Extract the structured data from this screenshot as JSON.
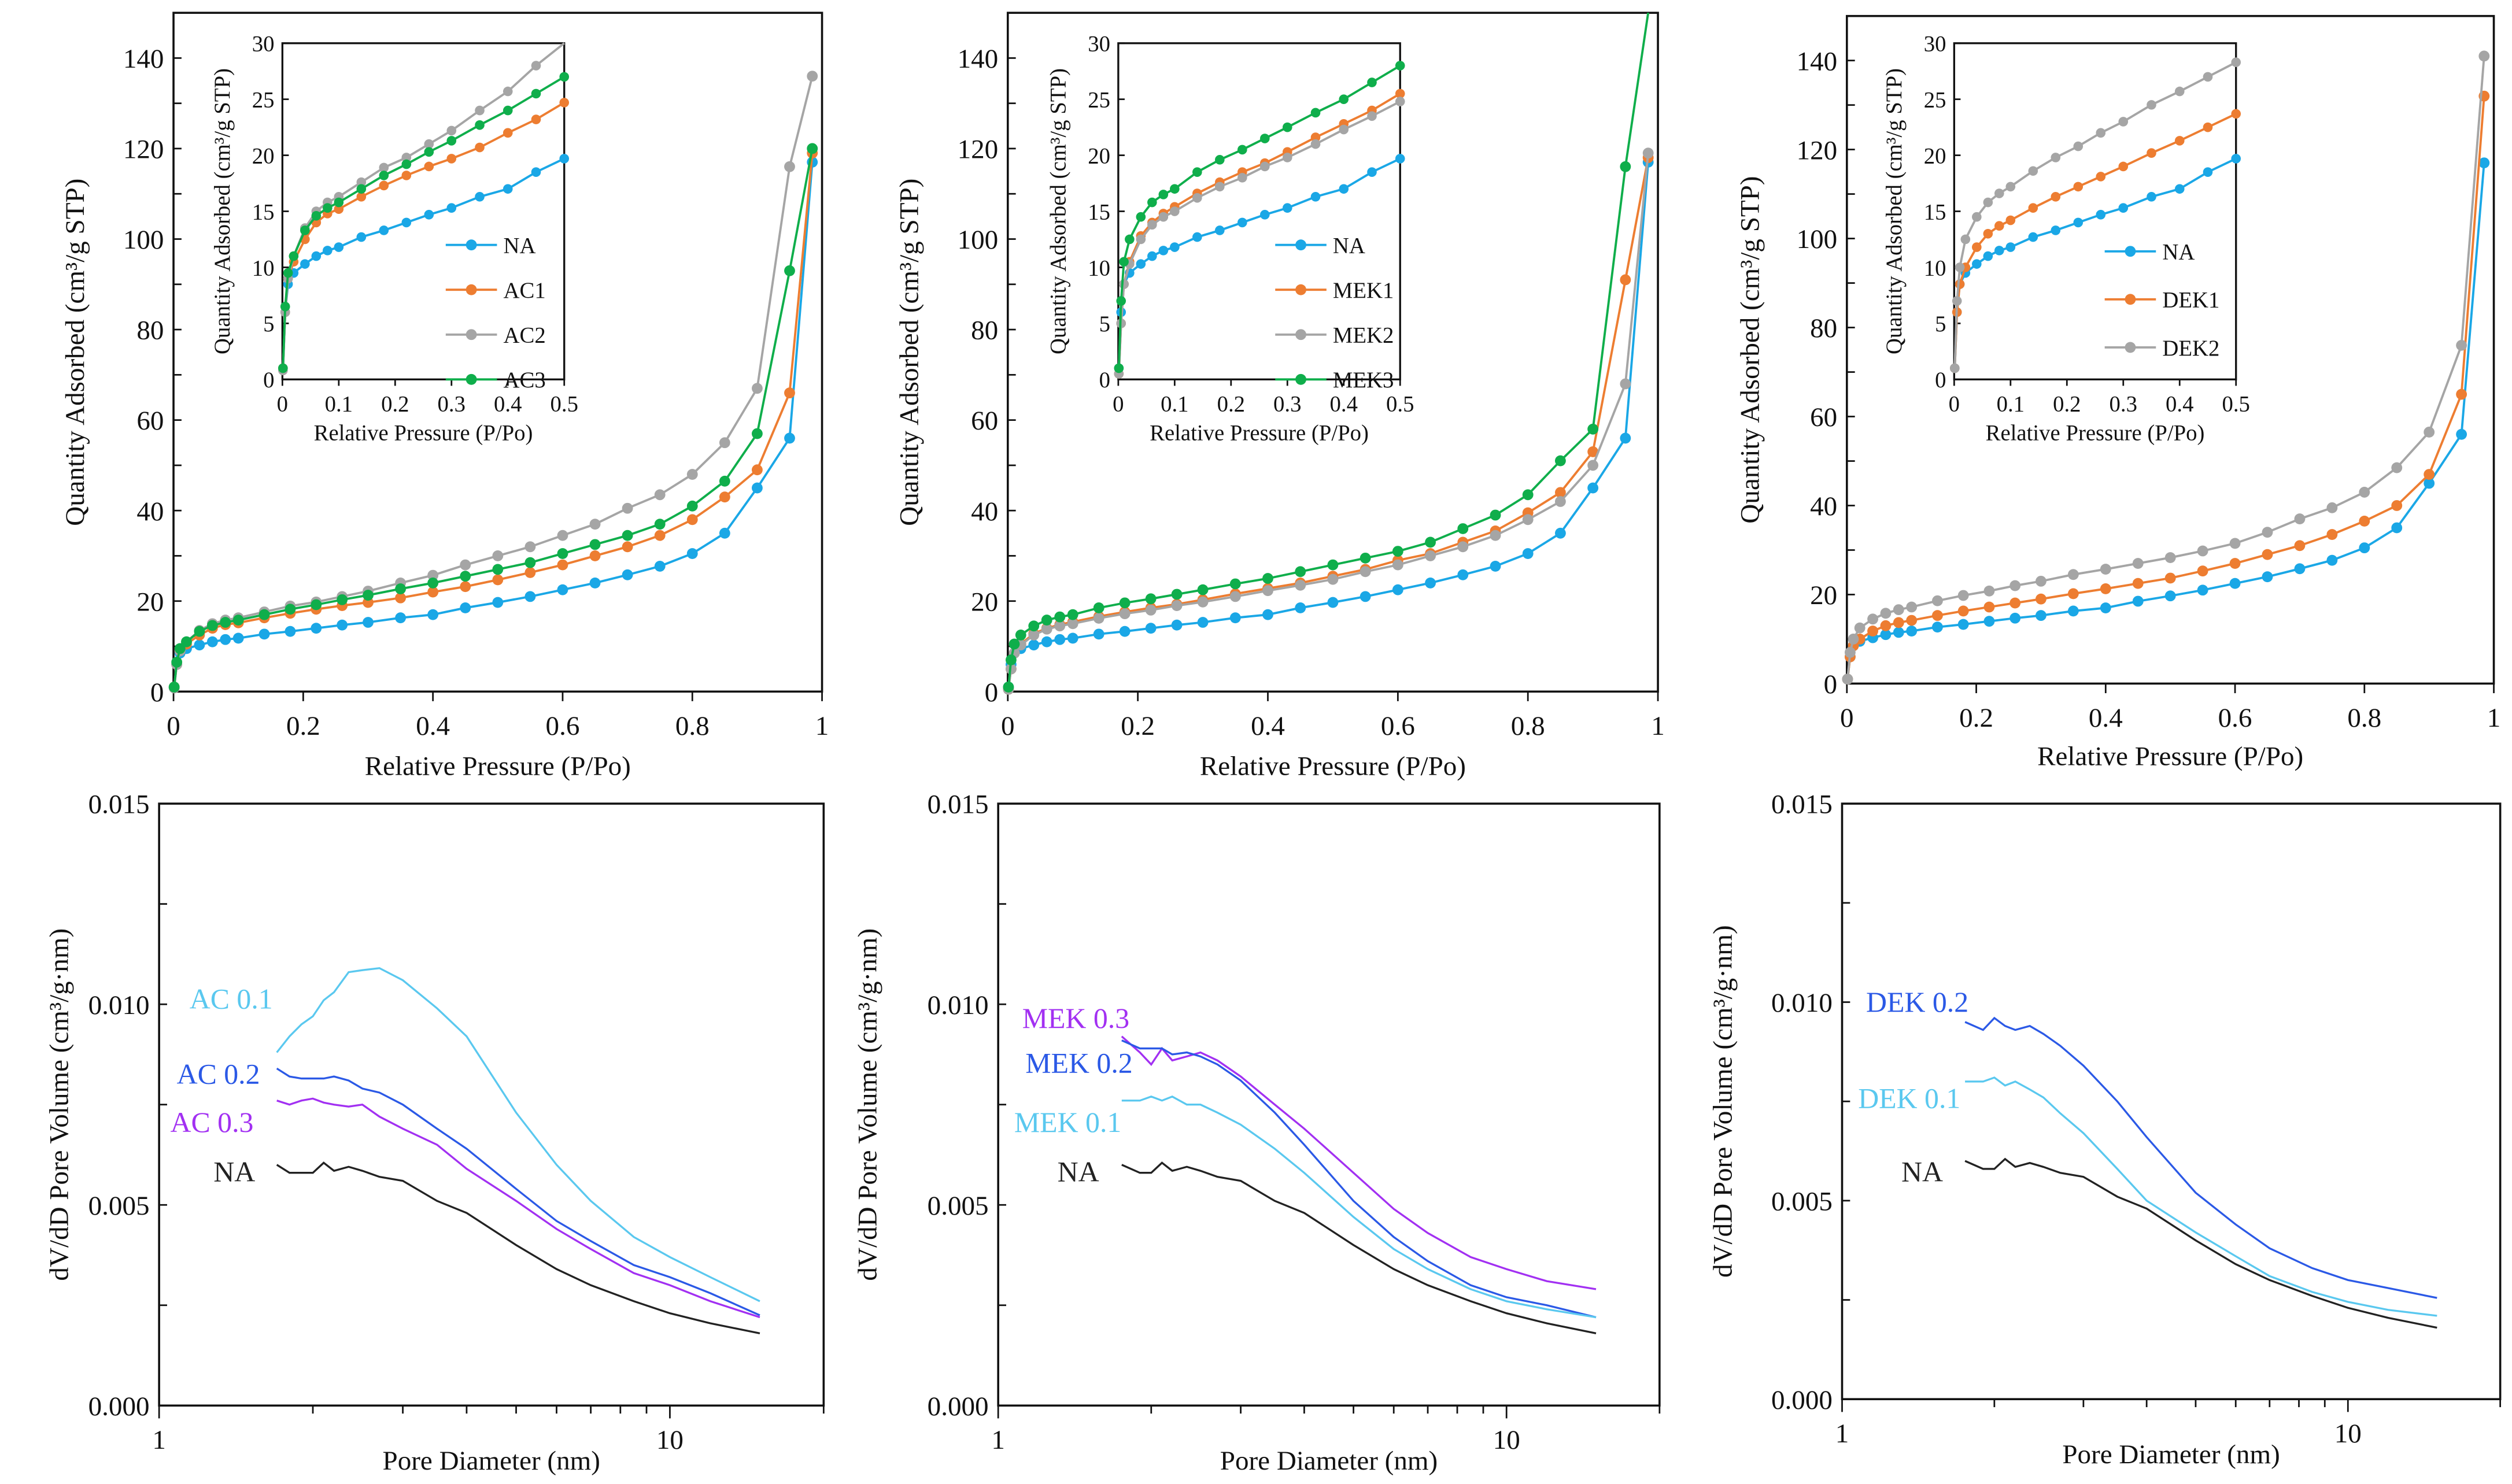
{
  "colors": {
    "NA": "#1aa7e6",
    "orange": "#ed7d31",
    "gray": "#a5a5a5",
    "green": "#0fae4b",
    "light_blue": "#5ac8ef",
    "blue": "#2b59e6",
    "purple": "#a230f2",
    "black": "#222222"
  },
  "chart_data": [
    {
      "id": "iso-ac",
      "type": "line",
      "xlabel": "Relative Pressure (P/Po)",
      "ylabel": "Quantity Adsorbed (cm³/g STP)",
      "xlim": [
        0,
        1
      ],
      "ylim": [
        0,
        150
      ],
      "xticks": [
        "0",
        "0.2",
        "0.4",
        "0.6",
        "0.8",
        "1"
      ],
      "yticks": [
        "0",
        "20",
        "40",
        "60",
        "80",
        "100",
        "120",
        "140"
      ],
      "x": [
        0.001,
        0.005,
        0.01,
        0.02,
        0.04,
        0.06,
        0.08,
        0.1,
        0.14,
        0.18,
        0.22,
        0.26,
        0.3,
        0.35,
        0.4,
        0.45,
        0.5,
        0.55,
        0.6,
        0.65,
        0.7,
        0.75,
        0.8,
        0.85,
        0.9,
        0.95,
        0.985
      ],
      "series": [
        {
          "name": "NA",
          "color": "#1aa7e6",
          "values": [
            1,
            6,
            8.5,
            9.5,
            10.3,
            11,
            11.5,
            11.8,
            12.7,
            13.3,
            14,
            14.7,
            15.3,
            16.3,
            17,
            18.5,
            19.7,
            21,
            22.5,
            24,
            25.8,
            27.7,
            30.5,
            35,
            45,
            56,
            117
          ]
        },
        {
          "name": "AC1",
          "color": "#ed7d31",
          "values": [
            1,
            6,
            9,
            10.5,
            12.5,
            14,
            14.8,
            15.2,
            16.3,
            17.3,
            18.2,
            19,
            19.7,
            20.7,
            22,
            23.2,
            24.7,
            26.3,
            28,
            30,
            32,
            34.5,
            38,
            43,
            49,
            66,
            119
          ]
        },
        {
          "name": "AC2",
          "color": "#a5a5a5",
          "values": [
            0.8,
            6,
            9,
            11,
            13.5,
            15,
            15.8,
            16.3,
            17.6,
            18.9,
            19.8,
            21,
            22.2,
            24,
            25.7,
            28,
            30,
            32,
            34.5,
            37,
            40.5,
            43.5,
            48,
            55,
            67,
            116,
            136
          ]
        },
        {
          "name": "AC3",
          "color": "#0fae4b",
          "values": [
            1,
            6.5,
            9.5,
            11,
            13.3,
            14.6,
            15.3,
            15.8,
            17,
            18.2,
            19.2,
            20.3,
            21.3,
            22.7,
            24,
            25.5,
            27,
            28.5,
            30.5,
            32.5,
            34.5,
            37,
            41,
            46.5,
            57,
            93,
            120
          ]
        }
      ],
      "inset": {
        "xlabel": "Relative Pressure (P/Po)",
        "ylabel": "Quantity Adsorbed (cm³/g STP)",
        "xlim": [
          0,
          0.5
        ],
        "ylim": [
          0,
          30
        ],
        "xticks": [
          "0",
          "0.1",
          "0.2",
          "0.3",
          "0.4",
          "0.5"
        ],
        "yticks": [
          "0",
          "5",
          "10",
          "15",
          "20",
          "25",
          "30"
        ],
        "legend": [
          "NA",
          "AC1",
          "AC2",
          "AC3"
        ]
      }
    },
    {
      "id": "iso-mek",
      "type": "line",
      "xlabel": "Relative Pressure (P/Po)",
      "ylabel": "Quantity Adsorbed (cm³/g STP)",
      "xlim": [
        0,
        1
      ],
      "ylim": [
        0,
        150
      ],
      "xticks": [
        "0",
        "0.2",
        "0.4",
        "0.6",
        "0.8",
        "1"
      ],
      "yticks": [
        "0",
        "20",
        "40",
        "60",
        "80",
        "100",
        "120",
        "140"
      ],
      "x": [
        0.001,
        0.005,
        0.01,
        0.02,
        0.04,
        0.06,
        0.08,
        0.1,
        0.14,
        0.18,
        0.22,
        0.26,
        0.3,
        0.35,
        0.4,
        0.45,
        0.5,
        0.55,
        0.6,
        0.65,
        0.7,
        0.75,
        0.8,
        0.85,
        0.9,
        0.95,
        0.985
      ],
      "series": [
        {
          "name": "NA",
          "color": "#1aa7e6",
          "values": [
            1,
            6,
            8.5,
            9.5,
            10.3,
            11,
            11.5,
            11.8,
            12.7,
            13.3,
            14,
            14.7,
            15.3,
            16.3,
            17,
            18.5,
            19.7,
            21,
            22.5,
            24,
            25.8,
            27.7,
            30.5,
            35,
            45,
            56,
            117
          ]
        },
        {
          "name": "MEK1",
          "color": "#ed7d31",
          "values": [
            0.5,
            5,
            8.5,
            10.5,
            12.8,
            14,
            14.8,
            15.4,
            16.6,
            17.6,
            18.5,
            19.3,
            20.3,
            21.6,
            22.8,
            24,
            25.5,
            27,
            29,
            30.5,
            33,
            35.5,
            39.5,
            44,
            53,
            91,
            118
          ]
        },
        {
          "name": "MEK2",
          "color": "#a5a5a5",
          "values": [
            0.5,
            5,
            8.5,
            10.3,
            12.5,
            13.8,
            14.5,
            15,
            16.2,
            17.2,
            18,
            19,
            19.8,
            21,
            22.3,
            23.5,
            24.8,
            26.5,
            28,
            30,
            32,
            34.5,
            38,
            42,
            50,
            68,
            119
          ]
        },
        {
          "name": "MEK3",
          "color": "#0fae4b",
          "values": [
            1,
            7,
            10.5,
            12.5,
            14.5,
            15.8,
            16.5,
            17,
            18.5,
            19.6,
            20.5,
            21.5,
            22.5,
            23.8,
            25,
            26.5,
            28,
            29.5,
            31,
            33,
            36,
            39,
            43.5,
            51,
            58,
            116,
            152
          ]
        }
      ],
      "inset": {
        "xlabel": "Relative Pressure (P/Po)",
        "ylabel": "Quantity Adsorbed (cm³/g STP)",
        "xlim": [
          0,
          0.5
        ],
        "ylim": [
          0,
          30
        ],
        "xticks": [
          "0",
          "0.1",
          "0.2",
          "0.3",
          "0.4",
          "0.5"
        ],
        "yticks": [
          "0",
          "5",
          "10",
          "15",
          "20",
          "25",
          "30"
        ],
        "legend": [
          "NA",
          "MEK1",
          "MEK2",
          "MEK3"
        ]
      }
    },
    {
      "id": "iso-dek",
      "type": "line",
      "xlabel": "Relative Pressure (P/Po)",
      "ylabel": "Quantity Adsorbed (cm³/g STP)",
      "xlim": [
        0,
        1
      ],
      "ylim": [
        0,
        150
      ],
      "xticks": [
        "0",
        "0.2",
        "0.4",
        "0.6",
        "0.8",
        "1"
      ],
      "yticks": [
        "0",
        "20",
        "40",
        "60",
        "80",
        "100",
        "120",
        "140"
      ],
      "x": [
        0.001,
        0.005,
        0.01,
        0.02,
        0.04,
        0.06,
        0.08,
        0.1,
        0.14,
        0.18,
        0.22,
        0.26,
        0.3,
        0.35,
        0.4,
        0.45,
        0.5,
        0.55,
        0.6,
        0.65,
        0.7,
        0.75,
        0.8,
        0.85,
        0.9,
        0.95,
        0.985
      ],
      "series": [
        {
          "name": "NA",
          "color": "#1aa7e6",
          "values": [
            1,
            6,
            8.5,
            9.5,
            10.3,
            11,
            11.5,
            11.8,
            12.7,
            13.3,
            14,
            14.7,
            15.3,
            16.3,
            17,
            18.5,
            19.7,
            21,
            22.5,
            24,
            25.8,
            27.7,
            30.5,
            35,
            45,
            56,
            117
          ]
        },
        {
          "name": "DEK1",
          "color": "#ed7d31",
          "values": [
            1,
            6,
            8.5,
            10,
            11.8,
            13,
            13.7,
            14.2,
            15.3,
            16.3,
            17.2,
            18.1,
            19,
            20.2,
            21.3,
            22.5,
            23.7,
            25.3,
            27,
            29,
            31,
            33.5,
            36.5,
            40,
            47,
            65,
            132
          ]
        },
        {
          "name": "DEK2",
          "color": "#a5a5a5",
          "values": [
            1,
            7,
            10,
            12.5,
            14.5,
            15.8,
            16.6,
            17.2,
            18.6,
            19.8,
            20.8,
            22,
            23,
            24.5,
            25.7,
            27,
            28.3,
            29.8,
            31.5,
            34,
            37,
            39.5,
            43,
            48.5,
            56.5,
            76,
            141
          ]
        }
      ],
      "inset": {
        "xlabel": "Relative Pressure (P/Po)",
        "ylabel": "Quantity Adsorbed (cm³/g STP)",
        "xlim": [
          0,
          0.5
        ],
        "ylim": [
          0,
          30
        ],
        "xticks": [
          "0",
          "0.1",
          "0.2",
          "0.3",
          "0.4",
          "0.5"
        ],
        "yticks": [
          "0",
          "5",
          "10",
          "15",
          "20",
          "25",
          "30"
        ],
        "legend": [
          "NA",
          "DEK1",
          "DEK2"
        ]
      }
    },
    {
      "id": "psd-ac",
      "type": "line",
      "xscale": "log",
      "xlabel": "Pore Diameter (nm)",
      "ylabel": "dV/dD Pore Volume (cm³/g·nm)",
      "xlim": [
        1,
        20
      ],
      "ylim": [
        0,
        0.015
      ],
      "xticks": [
        "1",
        "10"
      ],
      "yticks": [
        "0.000",
        "0.005",
        "0.010",
        "0.015"
      ],
      "x": [
        1.7,
        1.8,
        1.9,
        2.0,
        2.1,
        2.2,
        2.35,
        2.5,
        2.7,
        3.0,
        3.5,
        4.0,
        5.0,
        6.0,
        7.0,
        8.5,
        10,
        12,
        15
      ],
      "series": [
        {
          "name": "AC 0.1",
          "color": "#5ac8ef",
          "values": [
            0.0088,
            0.0092,
            0.0095,
            0.0097,
            0.0101,
            0.0103,
            0.0108,
            0.01085,
            0.0109,
            0.0106,
            0.0099,
            0.0092,
            0.0073,
            0.006,
            0.0051,
            0.0042,
            0.0037,
            0.0032,
            0.0026
          ]
        },
        {
          "name": "AC 0.2",
          "color": "#2b59e6",
          "values": [
            0.0084,
            0.0082,
            0.00815,
            0.00815,
            0.00815,
            0.0082,
            0.0081,
            0.0079,
            0.0078,
            0.0075,
            0.0069,
            0.0064,
            0.0054,
            0.0046,
            0.0041,
            0.0035,
            0.0032,
            0.0028,
            0.00225
          ]
        },
        {
          "name": "AC 0.3",
          "color": "#a230f2",
          "values": [
            0.0076,
            0.0075,
            0.0076,
            0.00765,
            0.00755,
            0.0075,
            0.00745,
            0.0075,
            0.0072,
            0.0069,
            0.0065,
            0.0059,
            0.0051,
            0.0044,
            0.0039,
            0.0033,
            0.003,
            0.0026,
            0.0022
          ]
        },
        {
          "name": "NA",
          "color": "#222222",
          "values": [
            0.006,
            0.0058,
            0.0058,
            0.0058,
            0.00605,
            0.00585,
            0.00595,
            0.00585,
            0.0057,
            0.0056,
            0.0051,
            0.0048,
            0.004,
            0.0034,
            0.003,
            0.0026,
            0.0023,
            0.00205,
            0.0018
          ]
        }
      ]
    },
    {
      "id": "psd-mek",
      "type": "line",
      "xscale": "log",
      "xlabel": "Pore Diameter (nm)",
      "ylabel": "dV/dD Pore Volume (cm³/g·nm)",
      "xlim": [
        1,
        20
      ],
      "ylim": [
        0,
        0.015
      ],
      "xticks": [
        "1",
        "10"
      ],
      "yticks": [
        "0.000",
        "0.005",
        "0.010",
        "0.015"
      ],
      "x": [
        1.75,
        1.9,
        2.0,
        2.1,
        2.2,
        2.35,
        2.5,
        2.7,
        3.0,
        3.5,
        4.0,
        5.0,
        6.0,
        7.0,
        8.5,
        10,
        12,
        15
      ],
      "series": [
        {
          "name": "MEK 0.3",
          "color": "#a230f2",
          "values": [
            0.0092,
            0.0088,
            0.0085,
            0.0089,
            0.0086,
            0.0087,
            0.0088,
            0.0086,
            0.0082,
            0.0075,
            0.0069,
            0.0058,
            0.0049,
            0.0043,
            0.0037,
            0.0034,
            0.0031,
            0.0029
          ]
        },
        {
          "name": "MEK 0.2",
          "color": "#2b59e6",
          "values": [
            0.0091,
            0.0089,
            0.0089,
            0.0089,
            0.00875,
            0.0088,
            0.0087,
            0.0085,
            0.0081,
            0.0073,
            0.0065,
            0.0051,
            0.0042,
            0.0036,
            0.003,
            0.0027,
            0.0025,
            0.0022
          ]
        },
        {
          "name": "MEK 0.1",
          "color": "#5ac8ef",
          "values": [
            0.0076,
            0.0076,
            0.0077,
            0.0076,
            0.0077,
            0.0075,
            0.0075,
            0.0073,
            0.007,
            0.0064,
            0.0058,
            0.0047,
            0.0039,
            0.0034,
            0.0029,
            0.0026,
            0.0024,
            0.0022
          ]
        },
        {
          "name": "NA",
          "color": "#222222",
          "values": [
            0.006,
            0.0058,
            0.0058,
            0.00605,
            0.00585,
            0.00595,
            0.00585,
            0.0057,
            0.0056,
            0.0051,
            0.0048,
            0.004,
            0.0034,
            0.003,
            0.0026,
            0.0023,
            0.00205,
            0.0018
          ]
        }
      ]
    },
    {
      "id": "psd-dek",
      "type": "line",
      "xscale": "log",
      "xlabel": "Pore Diameter (nm)",
      "ylabel": "dV/dD Pore Volume (cm³/g·nm)",
      "xlim": [
        1,
        20
      ],
      "ylim": [
        0,
        0.015
      ],
      "xticks": [
        "1",
        "10"
      ],
      "yticks": [
        "0.000",
        "0.005",
        "0.010",
        "0.015"
      ],
      "x": [
        1.75,
        1.9,
        2.0,
        2.1,
        2.2,
        2.35,
        2.5,
        2.7,
        3.0,
        3.5,
        4.0,
        5.0,
        6.0,
        7.0,
        8.5,
        10,
        12,
        15
      ],
      "series": [
        {
          "name": "DEK 0.2",
          "color": "#2b59e6",
          "values": [
            0.0095,
            0.0093,
            0.0096,
            0.0094,
            0.0093,
            0.0094,
            0.0092,
            0.0089,
            0.0084,
            0.0075,
            0.0066,
            0.0052,
            0.0044,
            0.0038,
            0.0033,
            0.003,
            0.0028,
            0.00255
          ]
        },
        {
          "name": "DEK 0.1",
          "color": "#5ac8ef",
          "values": [
            0.008,
            0.008,
            0.0081,
            0.0079,
            0.008,
            0.0078,
            0.0076,
            0.0072,
            0.0067,
            0.0058,
            0.005,
            0.0042,
            0.0036,
            0.0031,
            0.0027,
            0.00245,
            0.00225,
            0.0021
          ]
        },
        {
          "name": "NA",
          "color": "#222222",
          "values": [
            0.006,
            0.0058,
            0.0058,
            0.00605,
            0.00585,
            0.00595,
            0.00585,
            0.0057,
            0.0056,
            0.0051,
            0.0048,
            0.004,
            0.0034,
            0.003,
            0.0026,
            0.0023,
            0.00205,
            0.0018
          ]
        }
      ]
    }
  ]
}
